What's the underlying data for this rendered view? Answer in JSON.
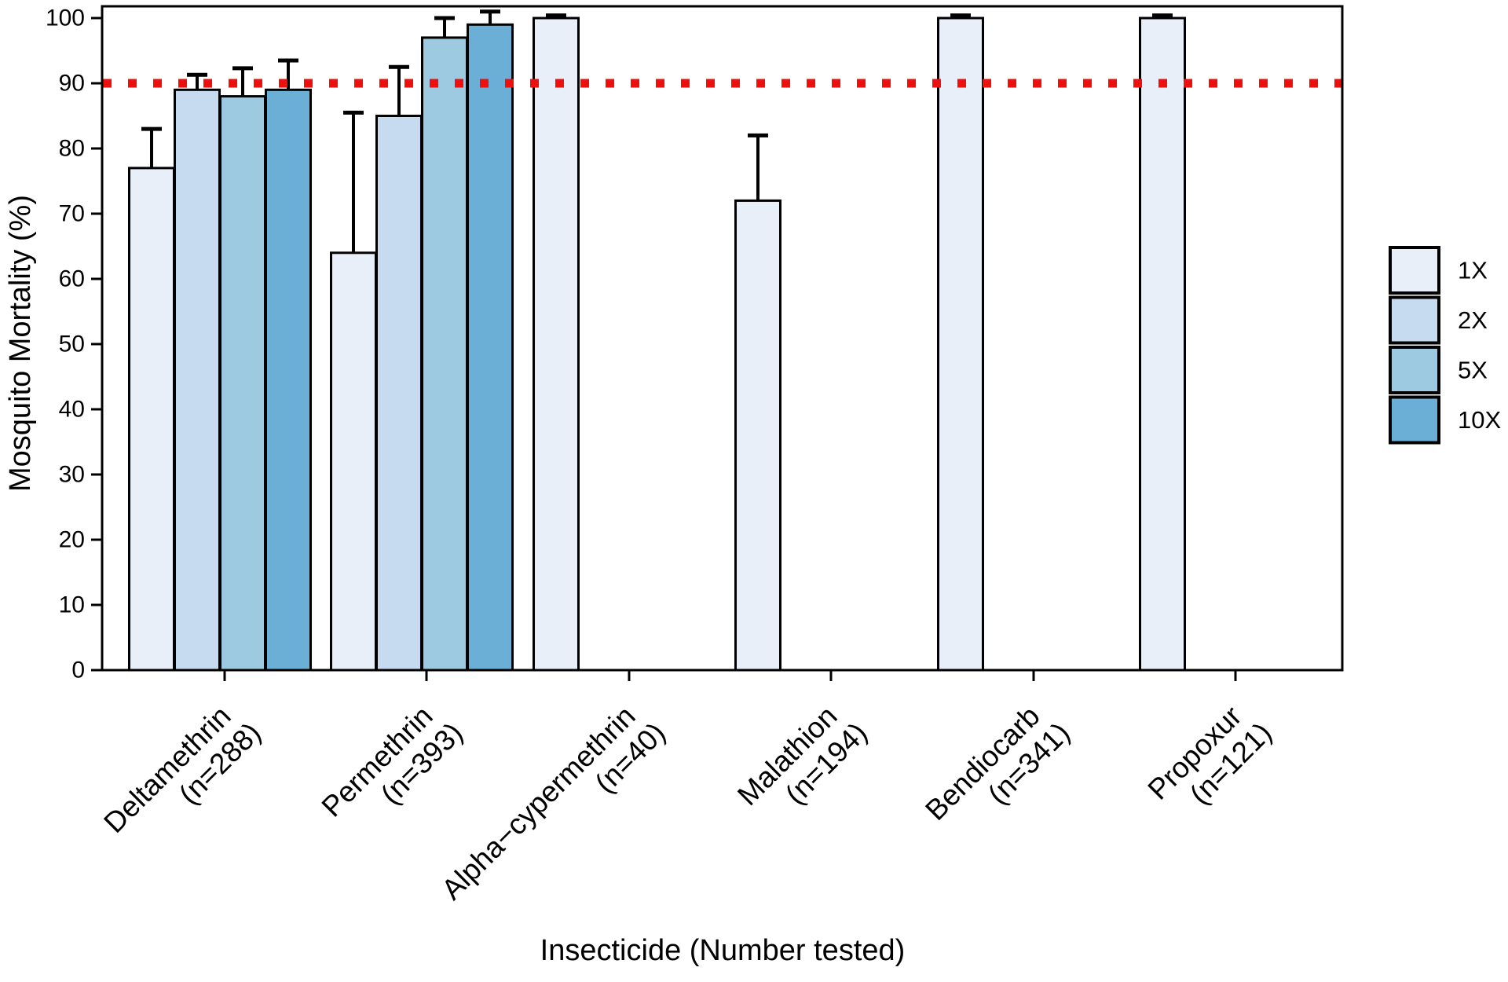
{
  "figure": {
    "background_color": "#FFFFFF",
    "text_color": "#000000",
    "bar_border_color": "#000000",
    "errorbar_color": "#000000"
  },
  "chart_data": {
    "type": "bar",
    "title": "",
    "xlabel": "Insecticide (Number tested)",
    "ylabel": "Mosquito Mortality (%)",
    "ylim": [
      0,
      100
    ],
    "yticks": [
      0,
      10,
      20,
      30,
      40,
      50,
      60,
      70,
      80,
      90,
      100
    ],
    "grid": "off",
    "legend_position": "right",
    "reference_line": {
      "y": 90,
      "color": "#ED100F",
      "style": "dotted"
    },
    "categories": [
      {
        "label": "Deltamethrin",
        "sub_label": "(n=288)",
        "n": 288
      },
      {
        "label": "Permethrin",
        "sub_label": "(n=393)",
        "n": 393
      },
      {
        "label": "Alpha−cypermethrin",
        "sub_label": "(n=40)",
        "n": 40
      },
      {
        "label": "Malathion",
        "sub_label": "(n=194)",
        "n": 194
      },
      {
        "label": "Bendiocarb",
        "sub_label": "(n=341)",
        "n": 341
      },
      {
        "label": "Propoxur",
        "sub_label": "(n=121)",
        "n": 121
      }
    ],
    "series": [
      {
        "name": "1X",
        "color": "#E9EFF9",
        "values": [
          77,
          64,
          100,
          72,
          100,
          100
        ],
        "upper_ci": [
          83,
          85.5,
          100.4,
          82,
          100.4,
          100.4
        ]
      },
      {
        "name": "2X",
        "color": "#C6DBEF",
        "values": [
          89,
          85,
          null,
          null,
          null,
          null
        ],
        "upper_ci": [
          91.3,
          92.5,
          null,
          null,
          null,
          null
        ]
      },
      {
        "name": "5X",
        "color": "#9ECAE1",
        "values": [
          88,
          97,
          null,
          null,
          null,
          null
        ],
        "upper_ci": [
          92.3,
          100,
          null,
          null,
          null,
          null
        ]
      },
      {
        "name": "10X",
        "color": "#6BAED6",
        "values": [
          89,
          99,
          null,
          null,
          null,
          null
        ],
        "upper_ci": [
          93.5,
          101,
          null,
          null,
          null,
          null
        ]
      }
    ]
  }
}
